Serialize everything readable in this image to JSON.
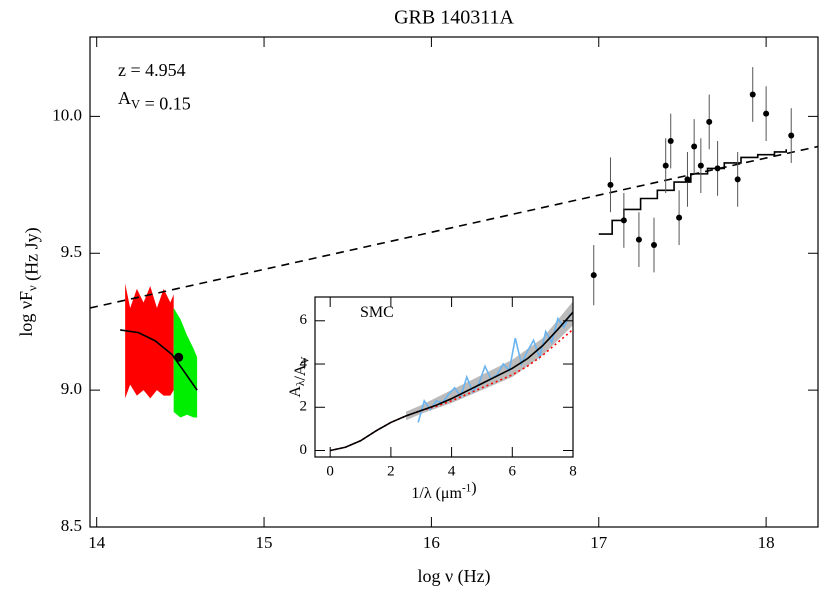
{
  "chart_data": [
    {
      "type": "sed",
      "title": "GRB 140311A",
      "xlabel": [
        {
          "t": "log ν (Hz)"
        }
      ],
      "ylabel": [
        {
          "t": "log νF"
        },
        {
          "sub": "ν"
        },
        {
          "t": " (Hz Jy)"
        }
      ],
      "annotations": [
        [
          {
            "t": "z = 4.954"
          }
        ],
        [
          {
            "t": "A"
          },
          {
            "sub": "V"
          },
          {
            "t": " = 0.15"
          }
        ]
      ],
      "xlim": [
        13.96,
        18.31
      ],
      "ylim": [
        8.5,
        10.29
      ],
      "xticks": [
        14,
        15,
        16,
        17,
        18
      ],
      "yticks": [
        {
          "value": 8.5,
          "label": "8.5"
        },
        {
          "value": 9.0,
          "label": "9.0"
        },
        {
          "value": 9.5,
          "label": "9.5"
        },
        {
          "value": 10.0,
          "label": "10.0"
        }
      ],
      "series": [
        {
          "type": "band",
          "color": "#ff0000",
          "x": [
            14.17,
            14.2,
            14.24,
            14.28,
            14.32,
            14.36,
            14.4,
            14.44,
            14.46
          ],
          "upper": [
            9.39,
            9.3,
            9.37,
            9.32,
            9.38,
            9.3,
            9.37,
            9.32,
            9.35
          ],
          "lower": [
            8.97,
            9.02,
            8.98,
            9.0,
            8.97,
            9.0,
            8.98,
            8.98,
            9.0
          ]
        },
        {
          "type": "band",
          "color": "#00ee00",
          "x": [
            14.46,
            14.5,
            14.54,
            14.58,
            14.6
          ],
          "upper": [
            9.3,
            9.26,
            9.2,
            9.15,
            9.12
          ],
          "lower": [
            8.92,
            8.9,
            8.91,
            8.9,
            8.9
          ]
        },
        {
          "type": "line",
          "color": "#000000",
          "x": [
            14.14,
            14.25,
            14.35,
            14.45,
            14.52,
            14.6
          ],
          "y": [
            9.22,
            9.21,
            9.18,
            9.13,
            9.07,
            9.0
          ]
        },
        {
          "type": "line",
          "color": "#000000",
          "dash": true,
          "x": [
            13.96,
            18.31
          ],
          "y": [
            9.3,
            9.89
          ]
        },
        {
          "type": "step",
          "color": "#000000",
          "x": [
            17.0,
            17.08,
            17.15,
            17.25,
            17.35,
            17.45,
            17.55,
            17.65,
            17.75,
            17.85,
            17.95,
            18.05,
            18.12
          ],
          "y": [
            9.57,
            9.62,
            9.66,
            9.7,
            9.73,
            9.76,
            9.79,
            9.81,
            9.83,
            9.85,
            9.86,
            9.87,
            9.88
          ]
        },
        {
          "type": "errorbar",
          "color": "#000000",
          "x": [
            16.97,
            17.07,
            17.15,
            17.24,
            17.33,
            17.4,
            17.43,
            17.48,
            17.53,
            17.57,
            17.61,
            17.66,
            17.71,
            17.83,
            17.92,
            18.0,
            18.15
          ],
          "y": [
            9.42,
            9.75,
            9.62,
            9.55,
            9.53,
            9.82,
            9.91,
            9.63,
            9.77,
            9.89,
            9.82,
            9.98,
            9.81,
            9.77,
            10.08,
            10.01,
            9.93
          ],
          "yerr": [
            0.11,
            0.1,
            0.1,
            0.1,
            0.1,
            0.1,
            0.1,
            0.1,
            0.1,
            0.1,
            0.1,
            0.1,
            0.1,
            0.1,
            0.1,
            0.1,
            0.1
          ]
        },
        {
          "type": "point",
          "color": "#000000",
          "x": [
            14.49
          ],
          "y": [
            9.12
          ]
        }
      ]
    },
    {
      "type": "extinction",
      "xlabel": [
        {
          "t": "1/λ (μm"
        },
        {
          "sup": "-1"
        },
        {
          "t": ")"
        }
      ],
      "ylabel": [
        {
          "t": "A"
        },
        {
          "sub": "λ"
        },
        {
          "t": "/A"
        },
        {
          "sub": "V"
        }
      ],
      "annotations": [
        [
          {
            "t": "SMC"
          }
        ]
      ],
      "annotation_color": "#dc143c",
      "xlim": [
        -0.5,
        8
      ],
      "ylim": [
        -0.3,
        7.1
      ],
      "xticks": [
        0,
        2,
        4,
        6,
        8
      ],
      "yticks": [
        0,
        2,
        4,
        6
      ],
      "series": [
        {
          "type": "band",
          "color": "#bbbbbb",
          "x": [
            2.5,
            3,
            4,
            5,
            6,
            7,
            8
          ],
          "upper": [
            1.8,
            2.1,
            2.8,
            3.5,
            4.2,
            5.2,
            6.9
          ],
          "lower": [
            1.4,
            1.7,
            2.2,
            2.8,
            3.4,
            4.4,
            5.8
          ]
        },
        {
          "type": "line",
          "color": "#6ab4f0",
          "x": [
            2.9,
            3.1,
            3.3,
            3.5,
            3.7,
            3.9,
            4.1,
            4.3,
            4.5,
            4.7,
            4.9,
            5.1,
            5.3,
            5.5,
            5.7,
            5.9,
            6.1,
            6.3,
            6.5,
            6.7,
            6.9,
            7.1,
            7.3,
            7.5,
            7.7,
            7.9
          ],
          "y": [
            1.3,
            2.3,
            1.9,
            2.3,
            2.2,
            2.6,
            2.9,
            2.5,
            3.4,
            2.7,
            3.1,
            3.9,
            3.3,
            3.5,
            4.0,
            3.7,
            5.2,
            4.0,
            4.6,
            5.1,
            4.3,
            5.5,
            5.0,
            6.1,
            5.7,
            6.3
          ]
        },
        {
          "type": "line",
          "color": "#ff0000",
          "dot": true,
          "x": [
            0,
            0.5,
            1,
            1.5,
            2,
            2.5,
            3,
            3.5,
            4,
            4.5,
            5,
            5.5,
            6,
            6.5,
            7,
            7.5,
            8
          ],
          "y": [
            0,
            0.15,
            0.45,
            0.9,
            1.3,
            1.6,
            1.85,
            2.05,
            2.3,
            2.6,
            2.9,
            3.2,
            3.5,
            3.9,
            4.4,
            5.0,
            5.6
          ]
        },
        {
          "type": "line",
          "color": "#000000",
          "x": [
            0,
            0.5,
            1,
            1.5,
            2,
            2.5,
            3,
            3.5,
            4,
            4.5,
            5,
            5.5,
            6,
            6.5,
            7,
            7.5,
            8
          ],
          "y": [
            0,
            0.15,
            0.45,
            0.9,
            1.3,
            1.6,
            1.85,
            2.1,
            2.4,
            2.75,
            3.1,
            3.45,
            3.8,
            4.25,
            4.85,
            5.6,
            6.4
          ]
        }
      ]
    }
  ]
}
